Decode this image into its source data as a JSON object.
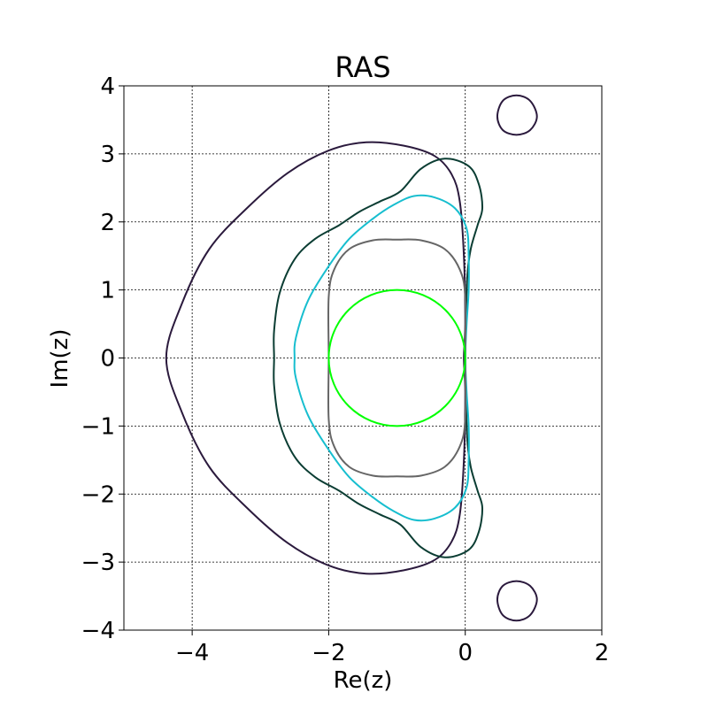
{
  "chart_data": {
    "type": "line",
    "title": "RAS",
    "xlabel": "Re(z)",
    "ylabel": "Im(z)",
    "xlim": [
      -5,
      2
    ],
    "ylim": [
      -4,
      4
    ],
    "grid": true,
    "grid_style": "dashed",
    "x_ticks": [
      -4,
      -2,
      0,
      2
    ],
    "x_tick_labels": [
      "−4",
      "−2",
      "0",
      "2"
    ],
    "y_ticks": [
      -4,
      -3,
      -2,
      -1,
      0,
      1,
      2,
      3,
      4
    ],
    "y_tick_labels": [
      "−4",
      "−3",
      "−2",
      "−1",
      "0",
      "1",
      "2",
      "3",
      "4"
    ],
    "series": [
      {
        "color": "#2b1a3d",
        "closed": true,
        "points": [
          [
            -0.02,
            0
          ],
          [
            0,
            0.5
          ],
          [
            -0.02,
            1.5
          ],
          [
            -0.08,
            2.3
          ],
          [
            -0.2,
            2.7
          ],
          [
            -0.45,
            2.97
          ],
          [
            -0.9,
            3.12
          ],
          [
            -1.45,
            3.17
          ],
          [
            -2.0,
            3.05
          ],
          [
            -2.6,
            2.72
          ],
          [
            -3.2,
            2.2
          ],
          [
            -3.75,
            1.6
          ],
          [
            -4.15,
            0.8
          ],
          [
            -4.38,
            0
          ],
          [
            -4.15,
            -0.8
          ],
          [
            -3.75,
            -1.6
          ],
          [
            -3.2,
            -2.2
          ],
          [
            -2.6,
            -2.72
          ],
          [
            -2.0,
            -3.05
          ],
          [
            -1.45,
            -3.17
          ],
          [
            -0.9,
            -3.12
          ],
          [
            -0.45,
            -2.97
          ],
          [
            -0.2,
            -2.7
          ],
          [
            -0.08,
            -2.3
          ],
          [
            -0.02,
            -1.5
          ],
          [
            0,
            -0.5
          ]
        ]
      },
      {
        "color": "#2b1a3d",
        "closed": true,
        "points": [
          [
            0.75,
            3.28
          ],
          [
            0.95,
            3.35
          ],
          [
            1.05,
            3.55
          ],
          [
            0.95,
            3.78
          ],
          [
            0.75,
            3.86
          ],
          [
            0.55,
            3.78
          ],
          [
            0.47,
            3.55
          ],
          [
            0.55,
            3.35
          ]
        ]
      },
      {
        "color": "#2b1a3d",
        "closed": true,
        "points": [
          [
            0.75,
            -3.28
          ],
          [
            0.95,
            -3.35
          ],
          [
            1.05,
            -3.55
          ],
          [
            0.95,
            -3.78
          ],
          [
            0.75,
            -3.86
          ],
          [
            0.55,
            -3.78
          ],
          [
            0.47,
            -3.55
          ],
          [
            0.55,
            -3.35
          ]
        ]
      },
      {
        "color": "#0b3d33",
        "closed": true,
        "points": [
          [
            0,
            0
          ],
          [
            0.01,
            0.5
          ],
          [
            0.03,
            1.2
          ],
          [
            0.08,
            1.6
          ],
          [
            0.18,
            1.95
          ],
          [
            0.25,
            2.2
          ],
          [
            0.2,
            2.55
          ],
          [
            0.05,
            2.82
          ],
          [
            -0.3,
            2.93
          ],
          [
            -0.65,
            2.78
          ],
          [
            -0.95,
            2.45
          ],
          [
            -1.25,
            2.3
          ],
          [
            -1.55,
            2.15
          ],
          [
            -1.85,
            1.95
          ],
          [
            -2.2,
            1.75
          ],
          [
            -2.5,
            1.45
          ],
          [
            -2.72,
            0.95
          ],
          [
            -2.8,
            0.4
          ],
          [
            -2.8,
            0
          ],
          [
            -2.8,
            -0.4
          ],
          [
            -2.72,
            -0.95
          ],
          [
            -2.5,
            -1.45
          ],
          [
            -2.2,
            -1.75
          ],
          [
            -1.85,
            -1.95
          ],
          [
            -1.55,
            -2.15
          ],
          [
            -1.25,
            -2.3
          ],
          [
            -0.95,
            -2.45
          ],
          [
            -0.65,
            -2.78
          ],
          [
            -0.3,
            -2.93
          ],
          [
            0.05,
            -2.82
          ],
          [
            0.2,
            -2.55
          ],
          [
            0.25,
            -2.2
          ],
          [
            0.18,
            -1.95
          ],
          [
            0.08,
            -1.6
          ],
          [
            0.03,
            -1.2
          ],
          [
            0.01,
            -0.5
          ]
        ]
      },
      {
        "color": "#17becf",
        "closed": true,
        "points": [
          [
            0,
            0
          ],
          [
            0.02,
            0.5
          ],
          [
            0.05,
            1.0
          ],
          [
            0.05,
            1.5
          ],
          [
            0.02,
            1.9
          ],
          [
            -0.15,
            2.2
          ],
          [
            -0.45,
            2.36
          ],
          [
            -0.75,
            2.38
          ],
          [
            -1.05,
            2.25
          ],
          [
            -1.35,
            2.05
          ],
          [
            -1.7,
            1.75
          ],
          [
            -2.0,
            1.35
          ],
          [
            -2.3,
            0.85
          ],
          [
            -2.48,
            0.3
          ],
          [
            -2.5,
            0
          ],
          [
            -2.48,
            -0.3
          ],
          [
            -2.3,
            -0.85
          ],
          [
            -2.0,
            -1.35
          ],
          [
            -1.7,
            -1.75
          ],
          [
            -1.35,
            -2.05
          ],
          [
            -1.05,
            -2.25
          ],
          [
            -0.75,
            -2.38
          ],
          [
            -0.45,
            -2.36
          ],
          [
            -0.15,
            -2.2
          ],
          [
            0.02,
            -1.9
          ],
          [
            0.05,
            -1.5
          ],
          [
            0.05,
            -1.0
          ],
          [
            0.02,
            -0.5
          ]
        ]
      },
      {
        "color": "#666666",
        "closed": true,
        "points": [
          [
            0,
            0
          ],
          [
            0,
            0.9
          ],
          [
            -0.08,
            1.3
          ],
          [
            -0.3,
            1.6
          ],
          [
            -0.65,
            1.73
          ],
          [
            -1.0,
            1.74
          ],
          [
            -1.35,
            1.73
          ],
          [
            -1.7,
            1.6
          ],
          [
            -1.92,
            1.3
          ],
          [
            -2.0,
            0.9
          ],
          [
            -2.0,
            0
          ],
          [
            -2.0,
            -0.9
          ],
          [
            -1.92,
            -1.3
          ],
          [
            -1.7,
            -1.6
          ],
          [
            -1.35,
            -1.73
          ],
          [
            -1.0,
            -1.74
          ],
          [
            -0.65,
            -1.73
          ],
          [
            -0.3,
            -1.6
          ],
          [
            -0.08,
            -1.3
          ],
          [
            0,
            -0.9
          ]
        ]
      },
      {
        "color": "#00ff00",
        "closed": true,
        "points": [
          [
            0,
            0
          ],
          [
            -0.0761,
            0.3827
          ],
          [
            -0.2929,
            0.7071
          ],
          [
            -0.6173,
            0.9239
          ],
          [
            -1.0,
            1.0
          ],
          [
            -1.3827,
            0.9239
          ],
          [
            -1.7071,
            0.7071
          ],
          [
            -1.9239,
            0.3827
          ],
          [
            -2.0,
            0
          ],
          [
            -1.9239,
            -0.3827
          ],
          [
            -1.7071,
            -0.7071
          ],
          [
            -1.3827,
            -0.9239
          ],
          [
            -1.0,
            -1.0
          ],
          [
            -0.6173,
            -0.9239
          ],
          [
            -0.2929,
            -0.7071
          ],
          [
            -0.0761,
            -0.3827
          ]
        ]
      }
    ]
  }
}
